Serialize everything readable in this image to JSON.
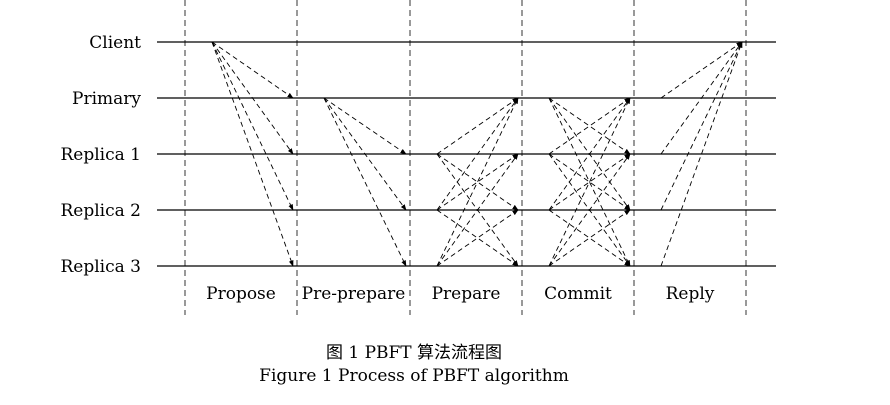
{
  "nodes": [
    "Client",
    "Primary",
    "Replica 1",
    "Replica 2",
    "Replica 3"
  ],
  "phases": [
    "Propose",
    "Pre-prepare",
    "Prepare",
    "Commit",
    "Reply"
  ],
  "messages": {
    "Propose": {
      "from": [
        "Client"
      ],
      "to": [
        "Primary",
        "Replica 1",
        "Replica 2",
        "Replica 3"
      ]
    },
    "Pre-prepare": {
      "from": [
        "Primary"
      ],
      "to": [
        "Replica 1",
        "Replica 2",
        "Replica 3"
      ]
    },
    "Prepare": {
      "from": [
        "Replica 1",
        "Replica 2",
        "Replica 3"
      ],
      "to": [
        "Primary",
        "Replica 1",
        "Replica 2",
        "Replica 3"
      ]
    },
    "Commit": {
      "from": [
        "Primary",
        "Replica 1",
        "Replica 2",
        "Replica 3"
      ],
      "to": [
        "Primary",
        "Replica 1",
        "Replica 2",
        "Replica 3"
      ]
    },
    "Reply": {
      "from": [
        "Primary",
        "Replica 1",
        "Replica 2",
        "Replica 3"
      ],
      "to": [
        "Client"
      ]
    }
  },
  "caption": {
    "chinese": "图 1  PBFT 算法流程图",
    "english": "Figure 1  Process of PBFT algorithm"
  }
}
